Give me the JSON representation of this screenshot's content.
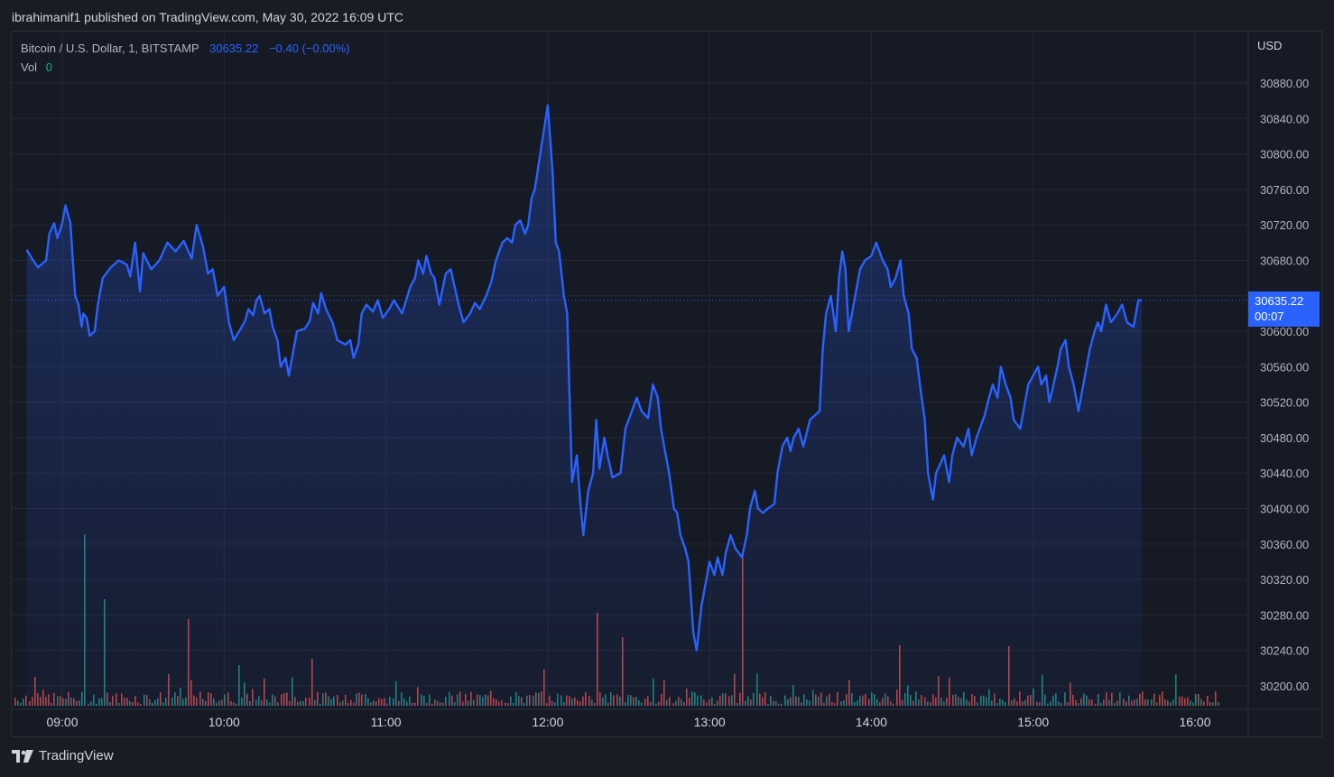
{
  "header": {
    "text": "ibrahimanif1 published on TradingView.com, May 30, 2022 16:09 UTC"
  },
  "legend": {
    "symbol": "Bitcoin / U.S. Dollar, 1, BITSTAMP",
    "last_price": "30635.22",
    "change": "−0.40 (−0.00%)",
    "vol_label": "Vol",
    "vol_value": "0"
  },
  "price_scale": {
    "currency": "USD"
  },
  "last_price_tag": {
    "price": "30635.22",
    "countdown": "00:07"
  },
  "footer": {
    "brand": "TradingView",
    "logo_icon": "tradingview-logo-icon"
  },
  "colors": {
    "line": "#2962ff",
    "volume_up": "#26a69a",
    "volume_down": "#ef5350",
    "background": "#161a25"
  },
  "chart_data": {
    "type": "area",
    "y_ticks": [
      30880,
      30840,
      30800,
      30760,
      30720,
      30680,
      30640,
      30600,
      30560,
      30520,
      30480,
      30440,
      30400,
      30360,
      30320,
      30280,
      30240,
      30200
    ],
    "ylim": [
      30190,
      30900
    ],
    "x_ticks": [
      "09:00",
      "10:00",
      "11:00",
      "12:00",
      "13:00",
      "14:00",
      "15:00",
      "16:00"
    ],
    "x_range_hours": [
      8.77,
      16.18
    ],
    "grid": true,
    "series": [
      {
        "type": "line",
        "points": [
          [
            8.78,
            30692
          ],
          [
            8.82,
            30680
          ],
          [
            8.85,
            30672
          ],
          [
            8.9,
            30680
          ],
          [
            8.92,
            30710
          ],
          [
            8.95,
            30722
          ],
          [
            8.97,
            30705
          ],
          [
            9.0,
            30722
          ],
          [
            9.02,
            30742
          ],
          [
            9.05,
            30722
          ],
          [
            9.08,
            30640
          ],
          [
            9.1,
            30630
          ],
          [
            9.12,
            30605
          ],
          [
            9.13,
            30620
          ],
          [
            9.15,
            30615
          ],
          [
            9.17,
            30595
          ],
          [
            9.2,
            30600
          ],
          [
            9.22,
            30630
          ],
          [
            9.25,
            30660
          ],
          [
            9.3,
            30672
          ],
          [
            9.35,
            30680
          ],
          [
            9.4,
            30675
          ],
          [
            9.42,
            30662
          ],
          [
            9.45,
            30700
          ],
          [
            9.48,
            30645
          ],
          [
            9.5,
            30688
          ],
          [
            9.55,
            30670
          ],
          [
            9.6,
            30680
          ],
          [
            9.65,
            30700
          ],
          [
            9.7,
            30690
          ],
          [
            9.75,
            30702
          ],
          [
            9.8,
            30682
          ],
          [
            9.83,
            30720
          ],
          [
            9.87,
            30695
          ],
          [
            9.9,
            30665
          ],
          [
            9.93,
            30670
          ],
          [
            9.96,
            30640
          ],
          [
            10.0,
            30650
          ],
          [
            10.03,
            30610
          ],
          [
            10.06,
            30590
          ],
          [
            10.1,
            30602
          ],
          [
            10.13,
            30612
          ],
          [
            10.15,
            30625
          ],
          [
            10.18,
            30618
          ],
          [
            10.2,
            30635
          ],
          [
            10.22,
            30640
          ],
          [
            10.25,
            30620
          ],
          [
            10.28,
            30625
          ],
          [
            10.3,
            30605
          ],
          [
            10.33,
            30590
          ],
          [
            10.35,
            30560
          ],
          [
            10.38,
            30570
          ],
          [
            10.4,
            30550
          ],
          [
            10.43,
            30580
          ],
          [
            10.45,
            30600
          ],
          [
            10.5,
            30603
          ],
          [
            10.53,
            30612
          ],
          [
            10.55,
            30632
          ],
          [
            10.58,
            30620
          ],
          [
            10.6,
            30643
          ],
          [
            10.63,
            30625
          ],
          [
            10.67,
            30610
          ],
          [
            10.7,
            30590
          ],
          [
            10.75,
            30585
          ],
          [
            10.78,
            30590
          ],
          [
            10.8,
            30570
          ],
          [
            10.83,
            30585
          ],
          [
            10.85,
            30620
          ],
          [
            10.88,
            30630
          ],
          [
            10.92,
            30622
          ],
          [
            10.95,
            30635
          ],
          [
            10.98,
            30615
          ],
          [
            11.02,
            30625
          ],
          [
            11.05,
            30635
          ],
          [
            11.1,
            30620
          ],
          [
            11.15,
            30650
          ],
          [
            11.18,
            30660
          ],
          [
            11.2,
            30680
          ],
          [
            11.23,
            30665
          ],
          [
            11.25,
            30685
          ],
          [
            11.28,
            30665
          ],
          [
            11.3,
            30660
          ],
          [
            11.33,
            30630
          ],
          [
            11.37,
            30665
          ],
          [
            11.4,
            30670
          ],
          [
            11.45,
            30630
          ],
          [
            11.48,
            30610
          ],
          [
            11.52,
            30620
          ],
          [
            11.55,
            30632
          ],
          [
            11.58,
            30625
          ],
          [
            11.62,
            30640
          ],
          [
            11.65,
            30655
          ],
          [
            11.68,
            30680
          ],
          [
            11.72,
            30700
          ],
          [
            11.75,
            30705
          ],
          [
            11.78,
            30700
          ],
          [
            11.8,
            30720
          ],
          [
            11.83,
            30725
          ],
          [
            11.86,
            30710
          ],
          [
            11.88,
            30720
          ],
          [
            11.9,
            30750
          ],
          [
            11.92,
            30760
          ],
          [
            12.0,
            30855
          ],
          [
            12.03,
            30780
          ],
          [
            12.05,
            30700
          ],
          [
            12.07,
            30690
          ],
          [
            12.1,
            30640
          ],
          [
            12.12,
            30620
          ],
          [
            12.15,
            30430
          ],
          [
            12.18,
            30460
          ],
          [
            12.2,
            30410
          ],
          [
            12.22,
            30370
          ],
          [
            12.25,
            30420
          ],
          [
            12.28,
            30440
          ],
          [
            12.3,
            30500
          ],
          [
            12.32,
            30445
          ],
          [
            12.35,
            30480
          ],
          [
            12.37,
            30460
          ],
          [
            12.4,
            30435
          ],
          [
            12.45,
            30440
          ],
          [
            12.48,
            30490
          ],
          [
            12.52,
            30510
          ],
          [
            12.55,
            30525
          ],
          [
            12.58,
            30510
          ],
          [
            12.62,
            30502
          ],
          [
            12.65,
            30540
          ],
          [
            12.68,
            30525
          ],
          [
            12.7,
            30490
          ],
          [
            12.72,
            30470
          ],
          [
            12.75,
            30440
          ],
          [
            12.78,
            30400
          ],
          [
            12.8,
            30395
          ],
          [
            12.82,
            30370
          ],
          [
            12.85,
            30355
          ],
          [
            12.87,
            30340
          ],
          [
            12.9,
            30260
          ],
          [
            12.92,
            30240
          ],
          [
            12.95,
            30290
          ],
          [
            12.98,
            30320
          ],
          [
            13.0,
            30340
          ],
          [
            13.03,
            30325
          ],
          [
            13.05,
            30345
          ],
          [
            13.08,
            30325
          ],
          [
            13.1,
            30350
          ],
          [
            13.13,
            30370
          ],
          [
            13.16,
            30355
          ],
          [
            13.2,
            30345
          ],
          [
            13.23,
            30370
          ],
          [
            13.25,
            30400
          ],
          [
            13.28,
            30420
          ],
          [
            13.3,
            30400
          ],
          [
            13.33,
            30395
          ],
          [
            13.36,
            30400
          ],
          [
            13.4,
            30405
          ],
          [
            13.42,
            30440
          ],
          [
            13.45,
            30470
          ],
          [
            13.48,
            30480
          ],
          [
            13.5,
            30465
          ],
          [
            13.52,
            30480
          ],
          [
            13.55,
            30490
          ],
          [
            13.58,
            30470
          ],
          [
            13.62,
            30500
          ],
          [
            13.65,
            30505
          ],
          [
            13.68,
            30510
          ],
          [
            13.7,
            30580
          ],
          [
            13.72,
            30620
          ],
          [
            13.75,
            30640
          ],
          [
            13.78,
            30600
          ],
          [
            13.8,
            30660
          ],
          [
            13.82,
            30690
          ],
          [
            13.84,
            30670
          ],
          [
            13.86,
            30600
          ],
          [
            13.9,
            30640
          ],
          [
            13.93,
            30670
          ],
          [
            13.96,
            30680
          ],
          [
            14.0,
            30685
          ],
          [
            14.03,
            30700
          ],
          [
            14.07,
            30680
          ],
          [
            14.1,
            30670
          ],
          [
            14.12,
            30650
          ],
          [
            14.15,
            30660
          ],
          [
            14.18,
            30680
          ],
          [
            14.2,
            30640
          ],
          [
            14.23,
            30620
          ],
          [
            14.25,
            30580
          ],
          [
            14.28,
            30570
          ],
          [
            14.3,
            30540
          ],
          [
            14.33,
            30500
          ],
          [
            14.35,
            30440
          ],
          [
            14.38,
            30410
          ],
          [
            14.4,
            30440
          ],
          [
            14.45,
            30460
          ],
          [
            14.48,
            30430
          ],
          [
            14.5,
            30460
          ],
          [
            14.53,
            30480
          ],
          [
            14.57,
            30470
          ],
          [
            14.6,
            30490
          ],
          [
            14.62,
            30460
          ],
          [
            14.65,
            30480
          ],
          [
            14.67,
            30490
          ],
          [
            14.7,
            30505
          ],
          [
            14.72,
            30520
          ],
          [
            14.75,
            30540
          ],
          [
            14.78,
            30525
          ],
          [
            14.8,
            30560
          ],
          [
            14.83,
            30540
          ],
          [
            14.86,
            30525
          ],
          [
            14.88,
            30500
          ],
          [
            14.92,
            30490
          ],
          [
            14.95,
            30520
          ],
          [
            14.97,
            30540
          ],
          [
            15.0,
            30550
          ],
          [
            15.03,
            30560
          ],
          [
            15.05,
            30540
          ],
          [
            15.08,
            30550
          ],
          [
            15.1,
            30520
          ],
          [
            15.12,
            30535
          ],
          [
            15.15,
            30560
          ],
          [
            15.17,
            30580
          ],
          [
            15.2,
            30590
          ],
          [
            15.22,
            30560
          ],
          [
            15.25,
            30540
          ],
          [
            15.28,
            30510
          ],
          [
            15.3,
            30530
          ],
          [
            15.33,
            30560
          ],
          [
            15.35,
            30580
          ],
          [
            15.38,
            30600
          ],
          [
            15.4,
            30610
          ],
          [
            15.42,
            30600
          ],
          [
            15.45,
            30630
          ],
          [
            15.48,
            30610
          ],
          [
            15.52,
            30620
          ],
          [
            15.55,
            30630
          ],
          [
            15.58,
            30610
          ],
          [
            15.62,
            30605
          ],
          [
            15.65,
            30635
          ],
          [
            15.67,
            30635
          ]
        ]
      }
    ],
    "volume": {
      "type": "bar",
      "note_units": "relative",
      "bars": []
    }
  }
}
